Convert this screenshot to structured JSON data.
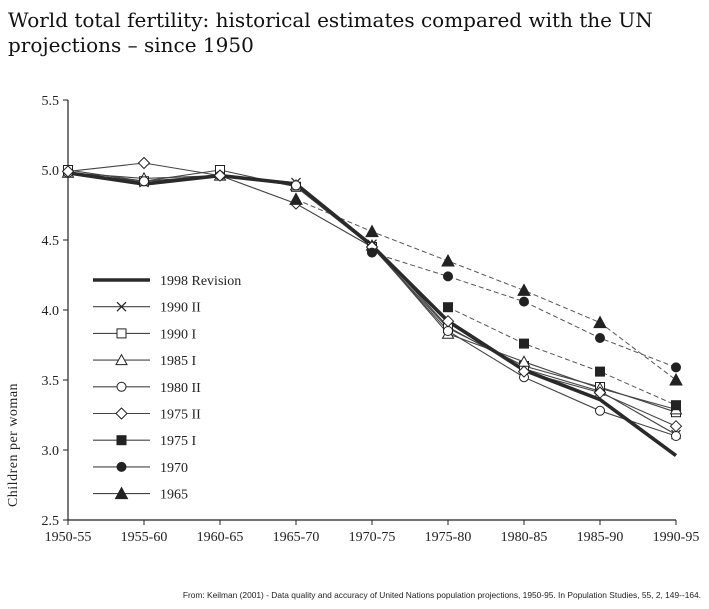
{
  "header": {
    "title": "World total fertility: historical estimates compared with the UN projections – since 1950"
  },
  "footer": {
    "source": "From: Keilman (2001) - Data quality and accuracy of United Nations population projections, 1950-95. In Population Studies, 55, 2, 149--164."
  },
  "chart_data": {
    "type": "line",
    "title": "World total fertility: historical estimates compared with the UN projections – since 1950",
    "xlabel": "",
    "ylabel": "Children per woman",
    "categories": [
      "1950-55",
      "1955-60",
      "1960-65",
      "1965-70",
      "1970-75",
      "1975-80",
      "1980-85",
      "1985-90",
      "1990-95"
    ],
    "ylim": [
      2.5,
      5.5
    ],
    "yticks": [
      2.5,
      3.0,
      3.5,
      4.0,
      4.5,
      5.0,
      5.5
    ],
    "ytick_labels": [
      "2.5",
      "3.0",
      "3.5",
      "4.0",
      "4.5",
      "5.0",
      "5.5"
    ],
    "grid": false,
    "legend_position": "left-center",
    "series": [
      {
        "name": "1998 Revision",
        "marker": "none",
        "style": "bold",
        "values": [
          4.98,
          4.9,
          4.96,
          4.9,
          4.46,
          3.92,
          3.57,
          3.36,
          2.96
        ]
      },
      {
        "name": "1990 II",
        "marker": "x",
        "style": "solid",
        "values": [
          4.98,
          4.91,
          4.96,
          4.91,
          4.47,
          3.88,
          3.58,
          3.42,
          3.11
        ]
      },
      {
        "name": "1990 I",
        "marker": "square-open",
        "style": "solid",
        "values": [
          5.0,
          4.92,
          5.0,
          4.88,
          4.45,
          3.87,
          3.6,
          3.45,
          3.27
        ]
      },
      {
        "name": "1985 I",
        "marker": "triangle-open",
        "style": "solid",
        "values": [
          4.98,
          4.94,
          4.96,
          4.89,
          4.46,
          3.83,
          3.63,
          3.44,
          3.29
        ]
      },
      {
        "name": "1980 II",
        "marker": "circle-open",
        "style": "solid",
        "values": [
          4.98,
          4.92,
          4.96,
          4.89,
          4.45,
          3.85,
          3.52,
          3.28,
          3.1
        ]
      },
      {
        "name": "1975 II",
        "marker": "diamond-open",
        "style": "solid",
        "values": [
          4.99,
          5.05,
          4.96,
          4.76,
          4.45,
          3.92,
          3.56,
          3.41,
          3.17
        ]
      },
      {
        "name": "1975 I",
        "marker": "square-filled",
        "style": "dashed",
        "values": [
          null,
          null,
          null,
          null,
          null,
          4.02,
          3.76,
          3.56,
          3.32
        ]
      },
      {
        "name": "1970",
        "marker": "circle-filled",
        "style": "dashed",
        "values": [
          null,
          null,
          null,
          null,
          4.41,
          4.24,
          4.06,
          3.8,
          3.59
        ]
      },
      {
        "name": "1965",
        "marker": "triangle-filled",
        "style": "dashed",
        "values": [
          null,
          null,
          null,
          4.79,
          4.56,
          4.35,
          4.14,
          3.91,
          3.5
        ]
      }
    ]
  }
}
